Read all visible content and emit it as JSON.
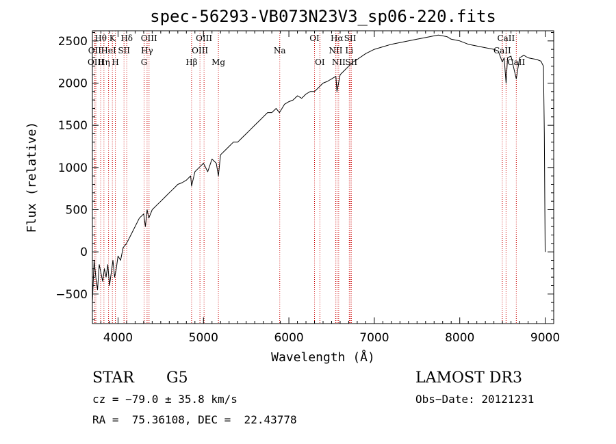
{
  "chart_data": {
    "type": "line",
    "title": "spec-56293-VB073N23V3_sp06-220.fits",
    "xlabel": "Wavelength (Å)",
    "ylabel": "Flux (relative)",
    "xlim": [
      3700,
      9100
    ],
    "ylim": [
      -850,
      2620
    ],
    "xticks": [
      4000,
      5000,
      6000,
      7000,
      8000,
      9000
    ],
    "yticks": [
      -500,
      0,
      500,
      1000,
      1500,
      2000,
      2500
    ],
    "series": [
      {
        "name": "flux",
        "x": [
          3700,
          3720,
          3740,
          3760,
          3780,
          3800,
          3820,
          3840,
          3860,
          3880,
          3900,
          3920,
          3940,
          3960,
          3980,
          4000,
          4030,
          4060,
          4100,
          4150,
          4200,
          4250,
          4300,
          4320,
          4340,
          4360,
          4400,
          4450,
          4500,
          4550,
          4600,
          4650,
          4700,
          4750,
          4800,
          4850,
          4861,
          4900,
          4950,
          5000,
          5050,
          5100,
          5150,
          5175,
          5200,
          5250,
          5300,
          5350,
          5400,
          5450,
          5500,
          5550,
          5600,
          5650,
          5700,
          5750,
          5800,
          5850,
          5890,
          5950,
          6000,
          6050,
          6100,
          6150,
          6200,
          6250,
          6300,
          6350,
          6400,
          6450,
          6500,
          6550,
          6563,
          6600,
          6650,
          6700,
          6750,
          6800,
          6900,
          7000,
          7100,
          7200,
          7300,
          7400,
          7500,
          7600,
          7700,
          7750,
          7800,
          7850,
          7900,
          8000,
          8100,
          8200,
          8300,
          8400,
          8450,
          8498,
          8520,
          8542,
          8560,
          8600,
          8662,
          8700,
          8750,
          8800,
          8850,
          8900,
          8950,
          8980,
          8990,
          9000
        ],
        "values": [
          -600,
          -100,
          -300,
          -450,
          -150,
          -250,
          -350,
          -200,
          -300,
          -150,
          -400,
          -250,
          -100,
          -300,
          -200,
          -50,
          -100,
          50,
          100,
          200,
          300,
          400,
          450,
          300,
          500,
          400,
          500,
          550,
          600,
          650,
          700,
          750,
          800,
          820,
          850,
          900,
          780,
          950,
          1000,
          1050,
          950,
          1100,
          1050,
          900,
          1150,
          1200,
          1250,
          1300,
          1300,
          1350,
          1400,
          1450,
          1500,
          1550,
          1600,
          1650,
          1650,
          1700,
          1650,
          1750,
          1780,
          1800,
          1850,
          1820,
          1870,
          1900,
          1900,
          1950,
          2000,
          2020,
          2050,
          2080,
          1900,
          2100,
          2150,
          2200,
          2250,
          2280,
          2350,
          2400,
          2430,
          2460,
          2480,
          2500,
          2520,
          2540,
          2560,
          2570,
          2560,
          2550,
          2520,
          2500,
          2460,
          2440,
          2420,
          2400,
          2380,
          2250,
          2300,
          2000,
          2300,
          2320,
          2050,
          2300,
          2330,
          2300,
          2290,
          2280,
          2260,
          2200,
          1400,
          0
        ]
      }
    ],
    "spectral_lines": [
      {
        "name": "Hθ",
        "x": 3797,
        "row": 0
      },
      {
        "name": "OII",
        "x": 3727,
        "row": 1
      },
      {
        "name": "OIII",
        "x": 3740,
        "row": 2
      },
      {
        "name": "K",
        "x": 3934,
        "row": 0
      },
      {
        "name": "HeI",
        "x": 3889,
        "row": 1
      },
      {
        "name": "Hη",
        "x": 3835,
        "row": 2
      },
      {
        "name": "Hδ",
        "x": 4102,
        "row": 0
      },
      {
        "name": "SII",
        "x": 4070,
        "row": 1
      },
      {
        "name": "H",
        "x": 3969,
        "row": 2
      },
      {
        "name": "OIII",
        "x": 4363,
        "row": 0
      },
      {
        "name": "Hγ",
        "x": 4340,
        "row": 1
      },
      {
        "name": "G",
        "x": 4305,
        "row": 2
      },
      {
        "name": "Hβ",
        "x": 4861,
        "row": 2
      },
      {
        "name": "OIII",
        "x": 5007,
        "row": 0
      },
      {
        "name": "OIII",
        "x": 4959,
        "row": 1
      },
      {
        "name": "Mg",
        "x": 5175,
        "row": 2
      },
      {
        "name": "Na",
        "x": 5893,
        "row": 1
      },
      {
        "name": "OI",
        "x": 6300,
        "row": 0
      },
      {
        "name": "OI",
        "x": 6363,
        "row": 2
      },
      {
        "name": "Hα",
        "x": 6563,
        "row": 0
      },
      {
        "name": "NII",
        "x": 6548,
        "row": 1
      },
      {
        "name": "NII",
        "x": 6583,
        "row": 2
      },
      {
        "name": "SII",
        "x": 6717,
        "row": 0
      },
      {
        "name": "Li",
        "x": 6707,
        "row": 1
      },
      {
        "name": "SII",
        "x": 6731,
        "row": 2
      },
      {
        "name": "CaII",
        "x": 8542,
        "row": 0
      },
      {
        "name": "CaII",
        "x": 8498,
        "row": 1
      },
      {
        "name": "CaII",
        "x": 8662,
        "row": 2
      }
    ]
  },
  "info": {
    "class": "STAR",
    "subclass": "G5",
    "survey": "LAMOST DR3",
    "cz": "cz = −79.0 ± 35.8 km/s",
    "obs_date": "Obs−Date: 20121231",
    "radec": "RA =  75.36108, DEC =  22.43778"
  },
  "colors": {
    "line": "#000000",
    "marker": "#cc0000"
  }
}
